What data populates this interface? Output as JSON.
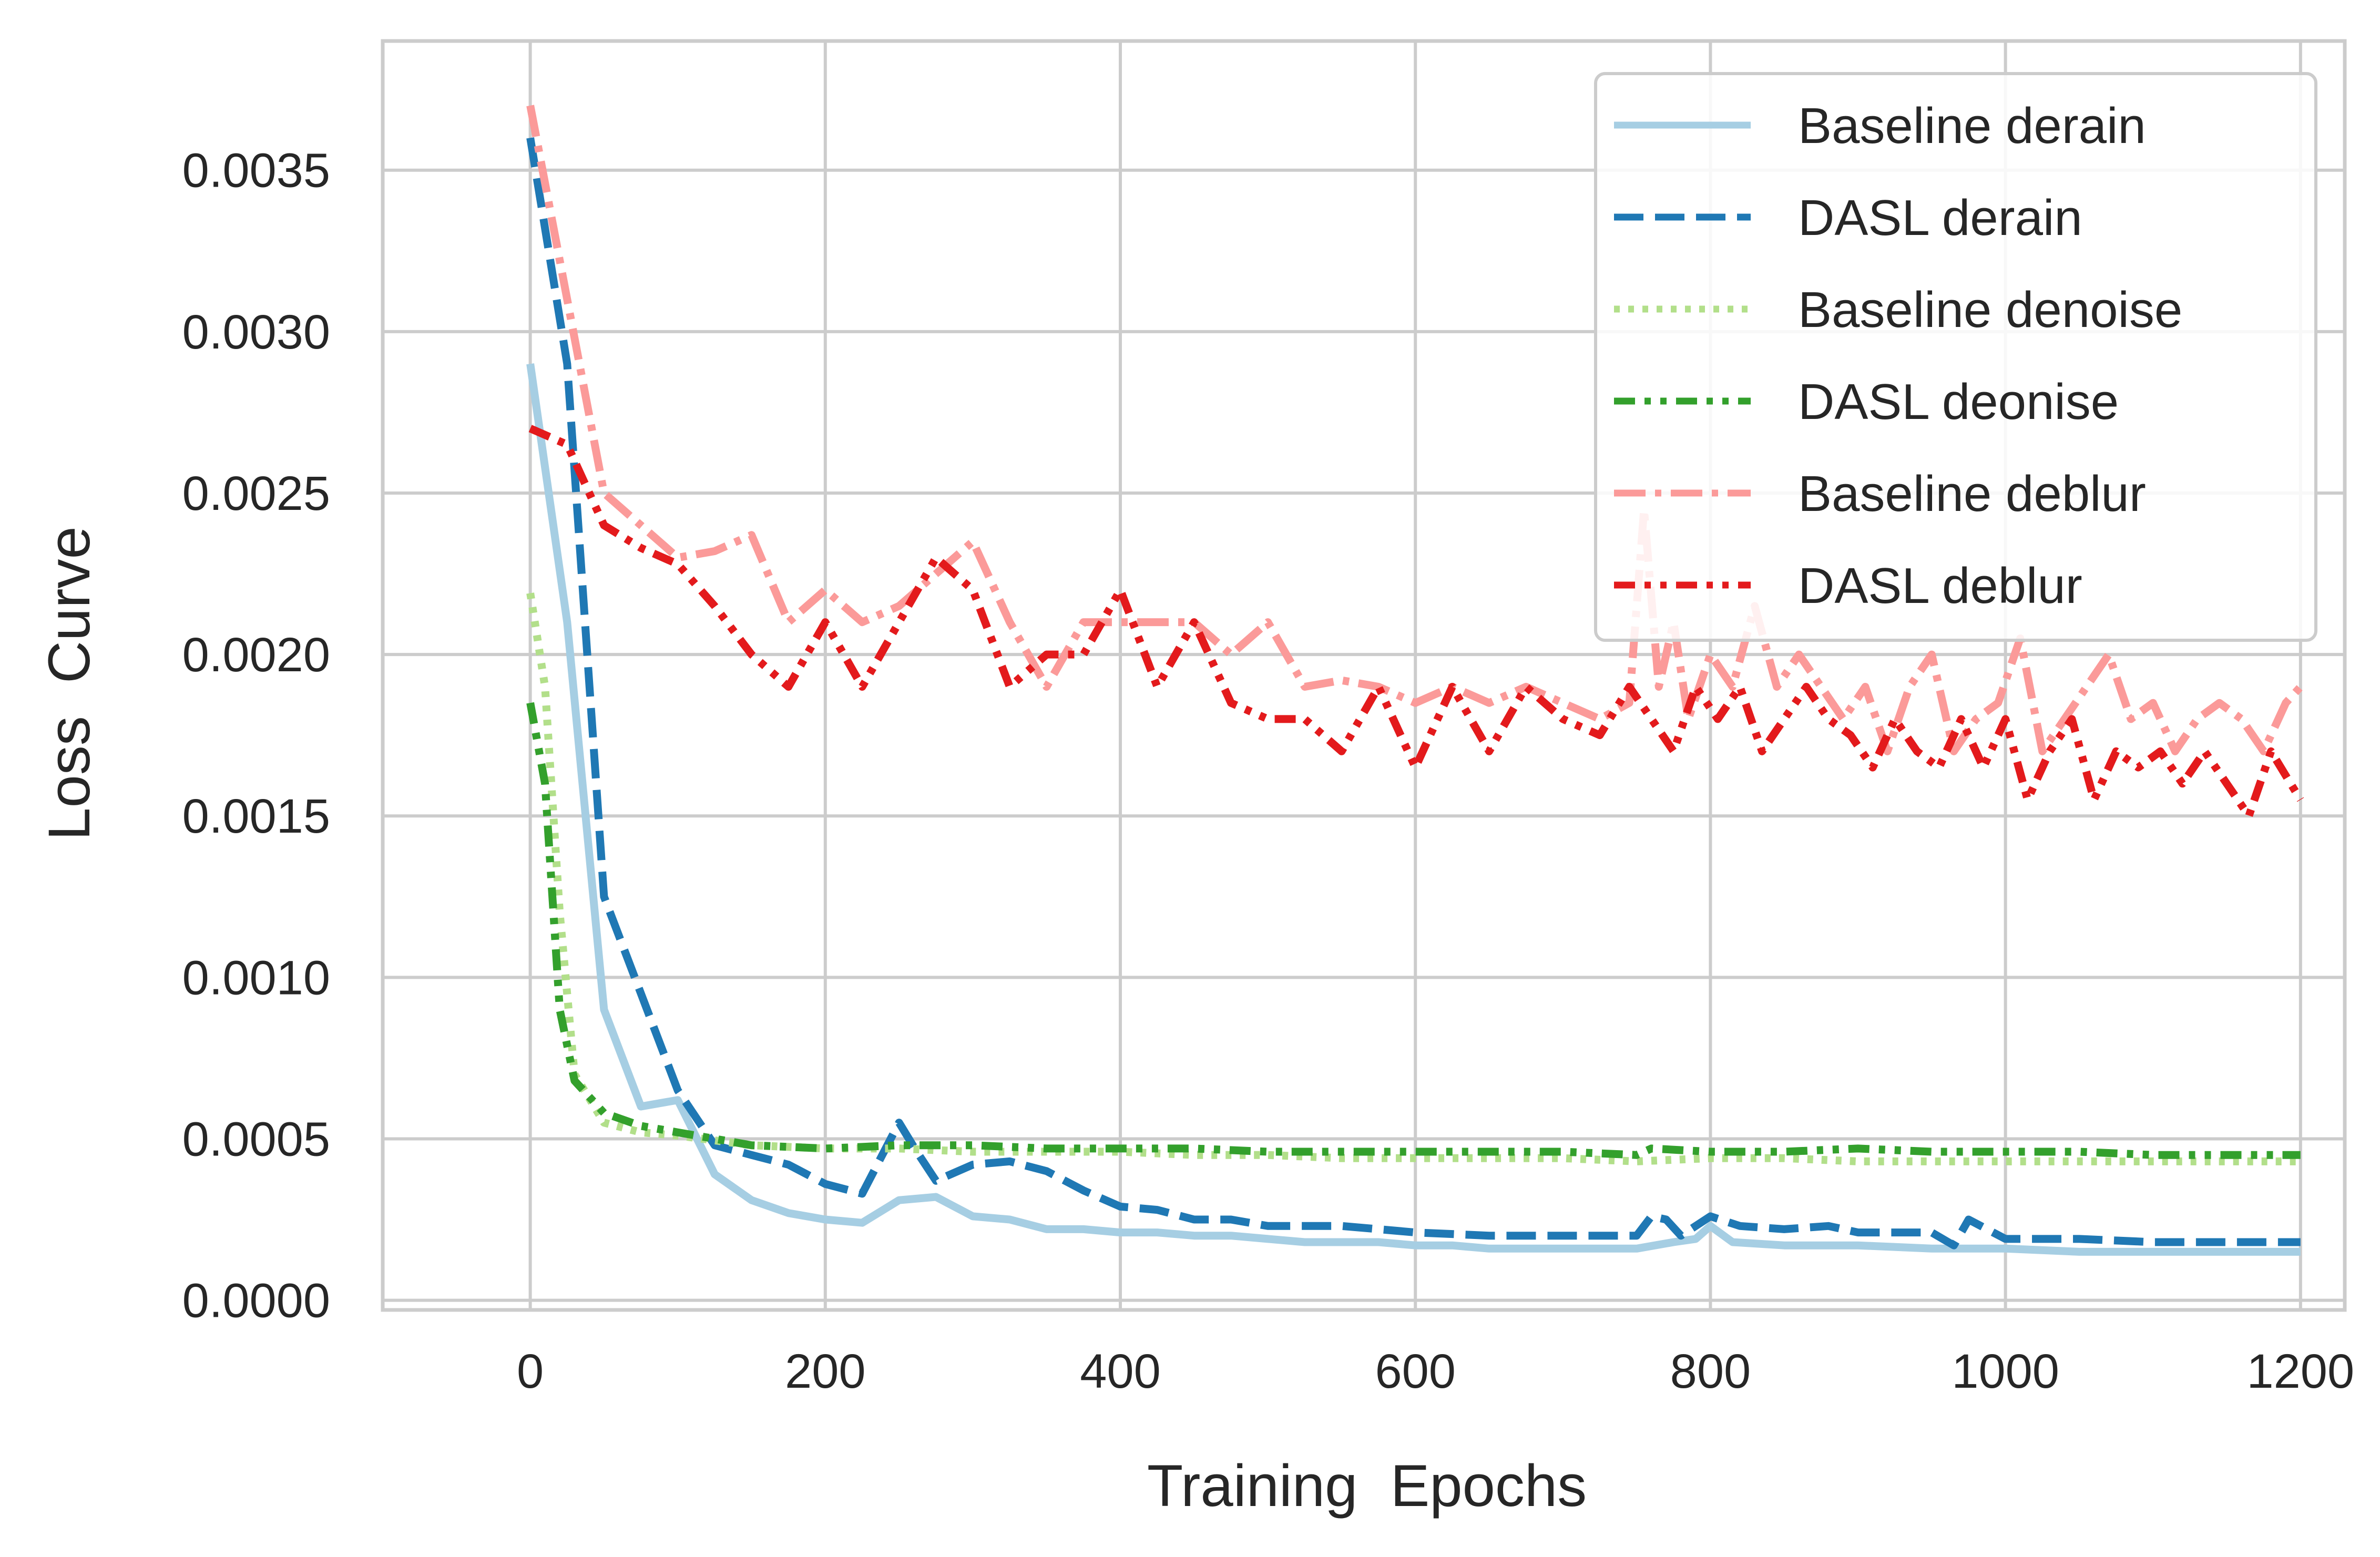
{
  "chart_data": {
    "type": "line",
    "title": "",
    "xlabel": "Training  Epochs",
    "ylabel": "Loss  Curve",
    "xlim": [
      -100,
      1230
    ],
    "ylim": [
      -3e-05,
      0.0039
    ],
    "xticks": [
      0,
      200,
      400,
      600,
      800,
      1000,
      1200
    ],
    "xtick_labels": [
      "0",
      "200",
      "400",
      "600",
      "800",
      "1000",
      "1200"
    ],
    "yticks": [
      0.0,
      0.0005,
      0.001,
      0.0015,
      0.002,
      0.0025,
      0.003,
      0.0035
    ],
    "ytick_labels": [
      "0.0000",
      "0.0005",
      "0.0010",
      "0.0015",
      "0.0020",
      "0.0025",
      "0.0030",
      "0.0035"
    ],
    "grid": true,
    "legend_position": "top-right",
    "series": [
      {
        "name": "Baseline derain",
        "color": "#a6cee3",
        "style": "solid",
        "x": [
          0,
          25,
          50,
          75,
          100,
          125,
          150,
          175,
          200,
          225,
          250,
          275,
          300,
          325,
          350,
          375,
          400,
          425,
          450,
          475,
          500,
          525,
          550,
          575,
          600,
          625,
          650,
          675,
          700,
          725,
          750,
          775,
          790,
          800,
          815,
          850,
          900,
          950,
          1000,
          1050,
          1100,
          1150,
          1200
        ],
        "y": [
          0.0029,
          0.0021,
          0.0009,
          0.0006,
          0.00062,
          0.00039,
          0.00031,
          0.00027,
          0.00025,
          0.00024,
          0.00031,
          0.00032,
          0.00026,
          0.00025,
          0.00022,
          0.00022,
          0.00021,
          0.00021,
          0.0002,
          0.0002,
          0.00019,
          0.00018,
          0.00018,
          0.00018,
          0.00017,
          0.00017,
          0.00016,
          0.00016,
          0.00016,
          0.00016,
          0.00016,
          0.00018,
          0.00019,
          0.00023,
          0.00018,
          0.00017,
          0.00017,
          0.00016,
          0.00016,
          0.00015,
          0.00015,
          0.00015,
          0.00015
        ]
      },
      {
        "name": "DASL derain",
        "color": "#1f78b4",
        "style": "dashed",
        "x": [
          0,
          25,
          50,
          75,
          100,
          125,
          150,
          175,
          200,
          225,
          250,
          262,
          275,
          300,
          325,
          350,
          375,
          400,
          425,
          450,
          475,
          500,
          525,
          550,
          575,
          600,
          650,
          700,
          750,
          760,
          770,
          780,
          800,
          820,
          850,
          880,
          900,
          950,
          965,
          975,
          1000,
          1050,
          1100,
          1150,
          1200
        ],
        "y": [
          0.0036,
          0.0029,
          0.00125,
          0.00095,
          0.00065,
          0.00048,
          0.00045,
          0.00042,
          0.00036,
          0.00033,
          0.00055,
          0.00046,
          0.00037,
          0.00042,
          0.00043,
          0.0004,
          0.00034,
          0.00029,
          0.00028,
          0.00025,
          0.00025,
          0.00023,
          0.00023,
          0.00023,
          0.00022,
          0.00021,
          0.0002,
          0.0002,
          0.0002,
          0.00026,
          0.00025,
          0.0002,
          0.00026,
          0.00023,
          0.00022,
          0.00023,
          0.00021,
          0.00021,
          0.00017,
          0.00025,
          0.00019,
          0.00019,
          0.00018,
          0.00018,
          0.00018
        ]
      },
      {
        "name": "Baseline denoise",
        "color": "#b2df8a",
        "style": "dotted",
        "x": [
          0,
          10,
          20,
          30,
          50,
          75,
          100,
          150,
          200,
          250,
          300,
          350,
          400,
          450,
          500,
          550,
          600,
          650,
          700,
          750,
          800,
          850,
          900,
          950,
          1000,
          1050,
          1100,
          1150,
          1200
        ],
        "y": [
          0.00219,
          0.0019,
          0.0012,
          0.0007,
          0.00055,
          0.00052,
          0.00051,
          0.00048,
          0.00047,
          0.00047,
          0.00046,
          0.00046,
          0.00046,
          0.00045,
          0.00045,
          0.00044,
          0.00044,
          0.00044,
          0.00044,
          0.00043,
          0.00044,
          0.00044,
          0.00043,
          0.00043,
          0.00043,
          0.00043,
          0.00043,
          0.00043,
          0.00043
        ]
      },
      {
        "name": "DASL deonise",
        "color": "#33a02c",
        "style": "dash-dot-dot",
        "x": [
          0,
          10,
          20,
          30,
          50,
          75,
          100,
          125,
          150,
          200,
          250,
          300,
          350,
          400,
          450,
          500,
          550,
          600,
          650,
          700,
          750,
          760,
          800,
          850,
          900,
          950,
          1000,
          1050,
          1100,
          1150,
          1200
        ],
        "y": [
          0.00185,
          0.0016,
          0.0009,
          0.00068,
          0.00058,
          0.00054,
          0.00052,
          0.0005,
          0.00048,
          0.00047,
          0.00048,
          0.00048,
          0.00047,
          0.00047,
          0.00047,
          0.00046,
          0.00046,
          0.00046,
          0.00046,
          0.00046,
          0.00045,
          0.00047,
          0.00046,
          0.00046,
          0.00047,
          0.00046,
          0.00046,
          0.00046,
          0.00045,
          0.00045,
          0.00045
        ]
      },
      {
        "name": "Baseline deblur",
        "color": "#fb9a99",
        "style": "dash-dot",
        "x": [
          0,
          25,
          50,
          75,
          100,
          125,
          150,
          175,
          200,
          225,
          250,
          275,
          300,
          325,
          350,
          375,
          400,
          425,
          450,
          475,
          500,
          525,
          550,
          575,
          600,
          625,
          650,
          675,
          700,
          725,
          745,
          755,
          765,
          775,
          785,
          800,
          815,
          830,
          845,
          860,
          875,
          890,
          905,
          920,
          935,
          950,
          965,
          980,
          995,
          1010,
          1025,
          1040,
          1055,
          1070,
          1085,
          1100,
          1115,
          1130,
          1145,
          1160,
          1175,
          1190,
          1200
        ],
        "y": [
          0.0037,
          0.0031,
          0.0025,
          0.0024,
          0.0023,
          0.00232,
          0.00237,
          0.0021,
          0.0022,
          0.0021,
          0.00215,
          0.00225,
          0.00235,
          0.0021,
          0.0019,
          0.0021,
          0.0021,
          0.0021,
          0.0021,
          0.002,
          0.0021,
          0.0019,
          0.00192,
          0.0019,
          0.00185,
          0.0019,
          0.00185,
          0.0019,
          0.00185,
          0.0018,
          0.00185,
          0.00245,
          0.0019,
          0.0021,
          0.0018,
          0.002,
          0.0019,
          0.00215,
          0.0019,
          0.002,
          0.0019,
          0.0018,
          0.0019,
          0.0017,
          0.0019,
          0.002,
          0.0017,
          0.0018,
          0.00185,
          0.00205,
          0.0017,
          0.0018,
          0.0019,
          0.002,
          0.0018,
          0.00185,
          0.0017,
          0.0018,
          0.00185,
          0.0018,
          0.0017,
          0.00185,
          0.0019
        ]
      },
      {
        "name": "DASL deblur",
        "color": "#e31a1c",
        "style": "dash-dot-dot",
        "x": [
          0,
          25,
          50,
          75,
          100,
          125,
          150,
          175,
          200,
          225,
          250,
          275,
          300,
          325,
          350,
          375,
          400,
          425,
          450,
          475,
          500,
          525,
          550,
          575,
          600,
          625,
          650,
          675,
          700,
          725,
          745,
          760,
          775,
          790,
          805,
          820,
          835,
          850,
          865,
          880,
          895,
          910,
          925,
          940,
          955,
          970,
          985,
          1000,
          1015,
          1030,
          1045,
          1060,
          1075,
          1090,
          1105,
          1120,
          1135,
          1150,
          1165,
          1180,
          1200
        ],
        "y": [
          0.0027,
          0.00265,
          0.0024,
          0.00233,
          0.00228,
          0.00215,
          0.002,
          0.0019,
          0.0021,
          0.0019,
          0.0021,
          0.0023,
          0.0022,
          0.0019,
          0.002,
          0.002,
          0.0022,
          0.0019,
          0.0021,
          0.00185,
          0.0018,
          0.0018,
          0.0017,
          0.0019,
          0.00165,
          0.0019,
          0.0017,
          0.0019,
          0.0018,
          0.00175,
          0.0019,
          0.0018,
          0.0017,
          0.0019,
          0.0018,
          0.0019,
          0.0017,
          0.0018,
          0.0019,
          0.0018,
          0.00175,
          0.00165,
          0.0018,
          0.0017,
          0.00165,
          0.0018,
          0.00165,
          0.0018,
          0.00155,
          0.0017,
          0.0018,
          0.00155,
          0.0017,
          0.00165,
          0.0017,
          0.0016,
          0.0017,
          0.0016,
          0.0015,
          0.0017,
          0.00155
        ]
      }
    ]
  }
}
